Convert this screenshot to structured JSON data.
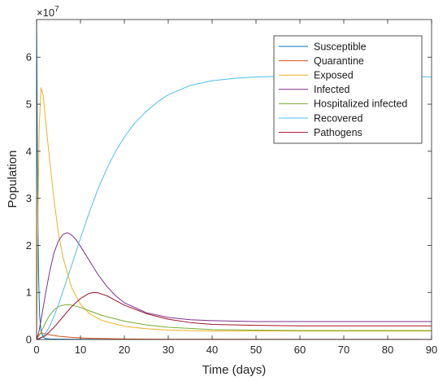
{
  "chart_data": {
    "type": "line",
    "title": "",
    "xlabel": "Time (days)",
    "ylabel": "Population",
    "y_exponent_label": "×10",
    "y_exponent_power": "7",
    "xlim": [
      0,
      90
    ],
    "ylim": [
      0,
      68000000
    ],
    "x_ticks": [
      0,
      10,
      20,
      30,
      40,
      50,
      60,
      70,
      80,
      90
    ],
    "y_ticks": [
      0,
      10000000,
      20000000,
      30000000,
      40000000,
      50000000,
      60000000
    ],
    "y_tick_labels": [
      "0",
      "1",
      "2",
      "3",
      "4",
      "5",
      "6"
    ],
    "grid": false,
    "legend_position": "top-right",
    "series": [
      {
        "name": "Susceptible",
        "color": "#0072BD",
        "x": [
          0,
          0.1,
          0.2,
          0.35,
          0.5,
          0.7,
          1,
          1.5,
          2,
          3,
          5,
          10,
          20,
          90
        ],
        "y": [
          68000000,
          52000000,
          38000000,
          22000000,
          12000000,
          5000000,
          1800000,
          500000,
          200000,
          100000,
          60000,
          40000,
          20000,
          10000
        ]
      },
      {
        "name": "Quarantine",
        "color": "#D95319",
        "x": [
          0,
          0.5,
          1,
          2,
          3,
          5,
          8,
          12,
          20,
          30,
          90
        ],
        "y": [
          0,
          1000000,
          1300000,
          1200000,
          1000000,
          700000,
          450000,
          250000,
          100000,
          50000,
          10000
        ]
      },
      {
        "name": "Exposed",
        "color": "#EDB120",
        "x": [
          0,
          0.3,
          0.6,
          1,
          1.5,
          2,
          3,
          4,
          5,
          6,
          8,
          10,
          12,
          15,
          20,
          25,
          30,
          40,
          50,
          60,
          70,
          80,
          90
        ],
        "y": [
          0,
          25000000,
          45000000,
          53500000,
          52000000,
          47000000,
          38000000,
          29500000,
          22500000,
          17500000,
          11000000,
          7500000,
          5500000,
          4000000,
          2800000,
          2300000,
          2000000,
          1800000,
          1800000,
          1800000,
          1800000,
          1800000,
          1800000
        ]
      },
      {
        "name": "Infected",
        "color": "#7E2F8E",
        "x": [
          0,
          0.5,
          1,
          2,
          3,
          4,
          5,
          6,
          7,
          8,
          9,
          10,
          12,
          14,
          16,
          18,
          20,
          25,
          30,
          35,
          40,
          50,
          60,
          70,
          80,
          90
        ],
        "y": [
          0,
          1500000,
          4000000,
          9500000,
          14500000,
          18500000,
          21000000,
          22300000,
          22700000,
          22200000,
          21200000,
          19800000,
          16800000,
          13800000,
          11300000,
          9300000,
          7800000,
          5700000,
          4700000,
          4200000,
          4000000,
          3800000,
          3800000,
          3800000,
          3800000,
          3800000
        ]
      },
      {
        "name": "Hospitalized infected",
        "color": "#77AC30",
        "x": [
          0,
          1,
          2,
          3,
          4,
          5,
          6,
          7,
          8,
          10,
          12,
          15,
          20,
          25,
          30,
          40,
          50,
          60,
          70,
          80,
          90
        ],
        "y": [
          0,
          1500000,
          3500000,
          5200000,
          6300000,
          7000000,
          7300000,
          7400000,
          7300000,
          6800000,
          6100000,
          5100000,
          3900000,
          3100000,
          2600000,
          2100000,
          2000000,
          1900000,
          1900000,
          1900000,
          1900000
        ]
      },
      {
        "name": "Recovered",
        "color": "#4DBEEE",
        "x": [
          0,
          1,
          2,
          3,
          4,
          5,
          6,
          7,
          8,
          10,
          12,
          14,
          16,
          18,
          20,
          22,
          25,
          28,
          30,
          35,
          40,
          45,
          50,
          55,
          60,
          70,
          80,
          90
        ],
        "y": [
          0,
          300000,
          1200000,
          2800000,
          5000000,
          7500000,
          10200000,
          13000000,
          15800000,
          21500000,
          27000000,
          32000000,
          36300000,
          40000000,
          43000000,
          45600000,
          48500000,
          50800000,
          52000000,
          54000000,
          55000000,
          55500000,
          55800000,
          55900000,
          56000000,
          56000000,
          56000000,
          55800000
        ]
      },
      {
        "name": "Pathogens",
        "color": "#A2142F",
        "x": [
          0,
          2,
          4,
          6,
          8,
          10,
          12,
          13,
          14,
          16,
          18,
          20,
          25,
          30,
          35,
          40,
          50,
          60,
          70,
          80,
          90
        ],
        "y": [
          0,
          800000,
          2600000,
          4800000,
          7000000,
          8700000,
          9800000,
          10000000,
          9900000,
          9300000,
          8300000,
          7300000,
          5500000,
          4300000,
          3600000,
          3200000,
          3000000,
          2900000,
          2900000,
          2900000,
          2900000
        ]
      }
    ]
  }
}
